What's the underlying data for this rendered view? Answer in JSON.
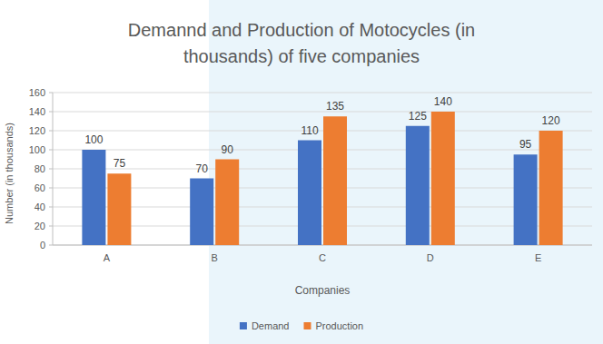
{
  "chart_data": {
    "type": "bar",
    "title": "Demannd and Production of Motocycles (in thousands) of five companies",
    "x_label": "Companies",
    "y_label": "Number (in thousands)",
    "categories": [
      "A",
      "B",
      "C",
      "D",
      "E"
    ],
    "series": [
      {
        "name": "Demand",
        "color": "#4472c4",
        "values": [
          100,
          70,
          110,
          125,
          95
        ]
      },
      {
        "name": "Production",
        "color": "#ed7d31",
        "values": [
          75,
          90,
          135,
          140,
          120
        ]
      }
    ],
    "ylim": [
      0,
      160
    ],
    "yticks": [
      0,
      20,
      40,
      60,
      80,
      100,
      120,
      140,
      160
    ],
    "grid": true,
    "legend": "bottom",
    "data_labels": true
  }
}
